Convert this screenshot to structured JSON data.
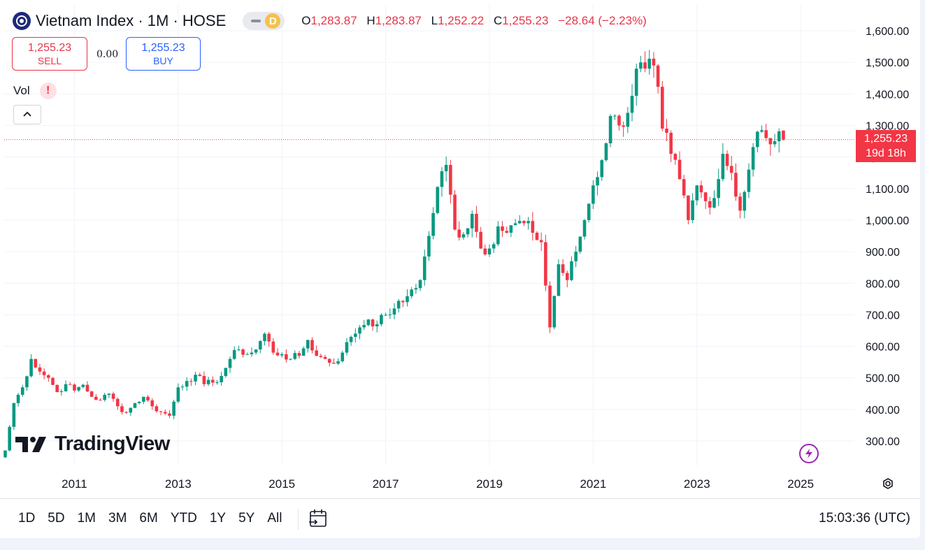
{
  "header": {
    "title": "Vietnam Index · 1M · HOSE",
    "interval_badge": "D",
    "ohlc": {
      "o_label": "O",
      "o": "1,283.87",
      "h_label": "H",
      "h": "1,283.87",
      "l_label": "L",
      "l": "1,252.22",
      "c_label": "C",
      "c": "1,255.23",
      "change": "−28.64 (−2.23%)"
    }
  },
  "trade": {
    "sell_price": "1,255.23",
    "sell_label": "SELL",
    "spread": "0.00",
    "buy_price": "1,255.23",
    "buy_label": "BUY"
  },
  "volume": {
    "label": "Vol",
    "warning": "!"
  },
  "watermark": "TradingView",
  "price_label": {
    "price": "1,255.23",
    "countdown": "19d 18h"
  },
  "bottom": {
    "ranges": [
      "1D",
      "5D",
      "1M",
      "3M",
      "6M",
      "YTD",
      "1Y",
      "5Y",
      "All"
    ],
    "clock": "15:03:36 (UTC)"
  },
  "colors": {
    "up": "#089981",
    "down": "#f23645",
    "accent": "#2962ff"
  },
  "chart_data": {
    "type": "candlestick",
    "title": "Vietnam Index · 1M · HOSE",
    "interval": "1M",
    "y_ticks": [
      "300.00",
      "400.00",
      "500.00",
      "600.00",
      "700.00",
      "800.00",
      "900.00",
      "1,000.00",
      "1,100.00",
      "1,200.00",
      "1,300.00",
      "1,400.00",
      "1,500.00",
      "1,600.00"
    ],
    "x_ticks": [
      "2011",
      "2013",
      "2015",
      "2017",
      "2019",
      "2021",
      "2023",
      "2025"
    ],
    "ylim": [
      240,
      1640
    ],
    "last_price": 1255.23,
    "grid": true,
    "anchor_closes": [
      [
        "2009-09",
        270
      ],
      [
        "2009-11",
        420
      ],
      [
        "2010-01",
        470
      ],
      [
        "2010-03",
        560
      ],
      [
        "2010-05",
        520
      ],
      [
        "2010-07",
        500
      ],
      [
        "2010-09",
        455
      ],
      [
        "2010-11",
        480
      ],
      [
        "2011-01",
        460
      ],
      [
        "2011-03",
        478
      ],
      [
        "2011-05",
        440
      ],
      [
        "2011-07",
        430
      ],
      [
        "2011-09",
        450
      ],
      [
        "2011-11",
        410
      ],
      [
        "2012-01",
        390
      ],
      [
        "2012-03",
        420
      ],
      [
        "2012-05",
        440
      ],
      [
        "2012-07",
        410
      ],
      [
        "2012-09",
        392
      ],
      [
        "2012-11",
        380
      ],
      [
        "2013-01",
        470
      ],
      [
        "2013-03",
        490
      ],
      [
        "2013-05",
        510
      ],
      [
        "2013-07",
        480
      ],
      [
        "2013-09",
        485
      ],
      [
        "2013-11",
        506
      ],
      [
        "2014-01",
        560
      ],
      [
        "2014-03",
        590
      ],
      [
        "2014-05",
        575
      ],
      [
        "2014-07",
        590
      ],
      [
        "2014-09",
        640
      ],
      [
        "2014-11",
        580
      ],
      [
        "2015-01",
        575
      ],
      [
        "2015-03",
        560
      ],
      [
        "2015-05",
        570
      ],
      [
        "2015-07",
        620
      ],
      [
        "2015-09",
        570
      ],
      [
        "2015-11",
        560
      ],
      [
        "2016-01",
        545
      ],
      [
        "2016-03",
        580
      ],
      [
        "2016-05",
        630
      ],
      [
        "2016-07",
        660
      ],
      [
        "2016-09",
        685
      ],
      [
        "2016-11",
        670
      ],
      [
        "2017-01",
        700
      ],
      [
        "2017-03",
        720
      ],
      [
        "2017-05",
        740
      ],
      [
        "2017-07",
        780
      ],
      [
        "2017-09",
        810
      ],
      [
        "2017-11",
        950
      ],
      [
        "2018-01",
        1105
      ],
      [
        "2018-03",
        1175
      ],
      [
        "2018-05",
        970
      ],
      [
        "2018-07",
        955
      ],
      [
        "2018-09",
        1020
      ],
      [
        "2018-11",
        910
      ],
      [
        "2019-01",
        910
      ],
      [
        "2019-03",
        980
      ],
      [
        "2019-05",
        960
      ],
      [
        "2019-07",
        990
      ],
      [
        "2019-09",
        990
      ],
      [
        "2019-11",
        960
      ],
      [
        "2020-01",
        930
      ],
      [
        "2020-03",
        660
      ],
      [
        "2020-05",
        860
      ],
      [
        "2020-07",
        810
      ],
      [
        "2020-09",
        900
      ],
      [
        "2020-11",
        1000
      ],
      [
        "2021-01",
        1110
      ],
      [
        "2021-03",
        1190
      ],
      [
        "2021-05",
        1330
      ],
      [
        "2021-07",
        1300
      ],
      [
        "2021-09",
        1340
      ],
      [
        "2021-11",
        1480
      ],
      [
        "2022-01",
        1480
      ],
      [
        "2022-03",
        1490
      ],
      [
        "2022-05",
        1290
      ],
      [
        "2022-07",
        1210
      ],
      [
        "2022-09",
        1130
      ],
      [
        "2022-11",
        1000
      ],
      [
        "2023-01",
        1110
      ],
      [
        "2023-03",
        1060
      ],
      [
        "2023-05",
        1070
      ],
      [
        "2023-07",
        1210
      ],
      [
        "2023-09",
        1150
      ],
      [
        "2023-11",
        1030
      ],
      [
        "2024-01",
        1160
      ],
      [
        "2024-03",
        1280
      ],
      [
        "2024-05",
        1260
      ],
      [
        "2024-07",
        1250
      ],
      [
        "2024-09",
        1255.23
      ]
    ]
  }
}
